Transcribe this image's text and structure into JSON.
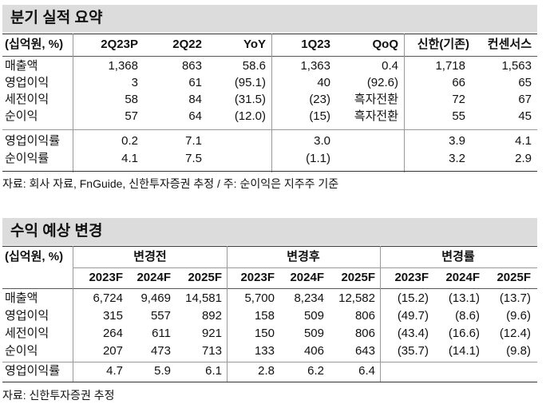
{
  "table1": {
    "title": "분기 실적 요약",
    "unit_label": "(십억원, %)",
    "headers": [
      "2Q23P",
      "2Q22",
      "YoY",
      "1Q23",
      "QoQ",
      "신한(기존)",
      "컨센서스"
    ],
    "rows": [
      {
        "label": "매출액",
        "cells": [
          "1,368",
          "863",
          "58.6",
          "1,363",
          "0.4",
          "1,718",
          "1,563"
        ]
      },
      {
        "label": "영업이익",
        "cells": [
          "3",
          "61",
          "(95.1)",
          "40",
          "(92.6)",
          "66",
          "65"
        ]
      },
      {
        "label": "세전이익",
        "cells": [
          "58",
          "84",
          "(31.5)",
          "(23)",
          "흑자전환",
          "72",
          "67"
        ]
      },
      {
        "label": "순이익",
        "cells": [
          "57",
          "64",
          "(12.0)",
          "(15)",
          "흑자전환",
          "55",
          "45"
        ]
      },
      {
        "label": "영업이익률",
        "cells": [
          "0.2",
          "7.1",
          "",
          "3.0",
          "",
          "3.9",
          "4.1"
        ]
      },
      {
        "label": "순이익률",
        "cells": [
          "4.1",
          "7.5",
          "",
          "(1.1)",
          "",
          "3.2",
          "2.9"
        ]
      }
    ],
    "source": "자료: 회사 자료, FnGuide, 신한투자증권 추정 / 주: 순이익은 지주주 기준"
  },
  "table2": {
    "title": "수익 예상 변경",
    "unit_label": "(십억원, %)",
    "groups": [
      "변경전",
      "변경후",
      "변경률"
    ],
    "years": [
      "2023F",
      "2024F",
      "2025F",
      "2023F",
      "2024F",
      "2025F",
      "2023F",
      "2024F",
      "2025F"
    ],
    "rows": [
      {
        "label": "매출액",
        "cells": [
          "6,724",
          "9,469",
          "14,581",
          "5,700",
          "8,234",
          "12,582",
          "(15.2)",
          "(13.1)",
          "(13.7)"
        ]
      },
      {
        "label": "영업이익",
        "cells": [
          "315",
          "557",
          "892",
          "158",
          "509",
          "806",
          "(49.7)",
          "(8.6)",
          "(9.6)"
        ]
      },
      {
        "label": "세전이익",
        "cells": [
          "264",
          "611",
          "921",
          "150",
          "509",
          "806",
          "(43.4)",
          "(16.6)",
          "(12.4)"
        ]
      },
      {
        "label": "순이익",
        "cells": [
          "207",
          "473",
          "713",
          "133",
          "406",
          "643",
          "(35.7)",
          "(14.1)",
          "(9.8)"
        ]
      },
      {
        "label": "영업이익률",
        "cells": [
          "4.7",
          "5.9",
          "6.1",
          "2.8",
          "6.2",
          "6.4",
          "",
          "",
          ""
        ]
      }
    ],
    "source": "자료: 신한투자증권 추정"
  }
}
